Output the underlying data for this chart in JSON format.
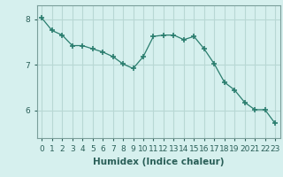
{
  "x": [
    0,
    1,
    2,
    3,
    4,
    5,
    6,
    7,
    8,
    9,
    10,
    11,
    12,
    13,
    14,
    15,
    16,
    17,
    18,
    19,
    20,
    21,
    22,
    23
  ],
  "y": [
    8.02,
    7.75,
    7.65,
    7.42,
    7.42,
    7.35,
    7.28,
    7.18,
    7.02,
    6.92,
    7.18,
    7.62,
    7.65,
    7.65,
    7.55,
    7.62,
    7.35,
    7.02,
    6.62,
    6.45,
    6.18,
    6.02,
    6.02,
    5.72
  ],
  "line_color": "#2a7d6e",
  "marker": "+",
  "marker_size": 4,
  "bg_color": "#d6f0ee",
  "grid_color": "#b8d8d4",
  "axis_color": "#7a9e9a",
  "xlabel": "Humidex (Indice chaleur)",
  "xlabel_fontsize": 7.5,
  "ylim": [
    5.4,
    8.3
  ],
  "xlim": [
    -0.5,
    23.5
  ],
  "yticks": [
    6,
    7,
    8
  ],
  "xtick_labels": [
    "0",
    "1",
    "2",
    "3",
    "4",
    "5",
    "6",
    "7",
    "8",
    "9",
    "10",
    "11",
    "12",
    "13",
    "14",
    "15",
    "16",
    "17",
    "18",
    "19",
    "20",
    "21",
    "22",
    "23"
  ],
  "tick_fontsize": 6.5,
  "ylabel_fontsize": 7
}
